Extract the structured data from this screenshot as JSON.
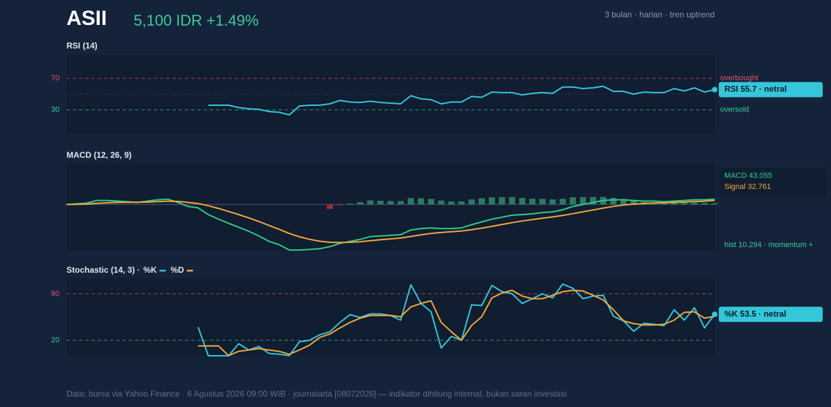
{
  "header": {
    "ticker": "ASII",
    "price": "5,100 IDR +1.49%",
    "meta": "3 bulan · harian · tren uptrend"
  },
  "chart_data": [
    {
      "type": "line",
      "title": "RSI (14)",
      "ylim": [
        0,
        100
      ],
      "yticks": [
        30,
        70
      ],
      "tick_colors": [
        "#3cc99a",
        "#e0546a"
      ],
      "tick_notes": [
        "oversold",
        "overbought"
      ],
      "midline": 50,
      "badge": "RSI 55.7 · netral",
      "badge_color": "#35c6da",
      "series": [
        {
          "color": "#35c6da",
          "values": [
            null,
            null,
            null,
            null,
            null,
            null,
            null,
            null,
            null,
            null,
            null,
            null,
            null,
            null,
            36,
            36,
            36,
            33,
            31.5,
            30.7,
            28,
            27,
            23.7,
            35,
            36,
            36,
            37.7,
            42,
            40,
            39.5,
            41,
            39.5,
            38.6,
            37.7,
            48,
            44,
            43,
            37.7,
            40,
            40,
            47,
            46,
            52.6,
            52,
            52,
            49,
            51,
            52,
            51,
            59,
            59,
            57,
            58,
            60,
            53.5,
            53.5,
            50,
            52.6,
            52,
            52,
            57,
            54,
            58,
            52.6,
            55.7
          ]
        }
      ]
    },
    {
      "type": "combo",
      "title": "MACD (12, 26, 9)",
      "ylim": [
        -370,
        330
      ],
      "series": [
        {
          "type": "bar",
          "label": "hist 10.294 · momentum +",
          "color": "#2c7a63",
          "negative_color": "#9b2c3f",
          "label_color": "#3cc99a",
          "values": [
            null,
            null,
            null,
            null,
            null,
            null,
            null,
            null,
            null,
            null,
            null,
            null,
            null,
            null,
            null,
            null,
            null,
            null,
            null,
            null,
            null,
            null,
            null,
            null,
            null,
            null,
            -35.4,
            -6.7,
            7.4,
            18.7,
            32.6,
            30.1,
            28,
            27.2,
            51.4,
            49.9,
            44.7,
            31,
            24.8,
            24.6,
            40.5,
            50,
            57.6,
            58.9,
            59.9,
            51.9,
            46.3,
            45,
            40.8,
            45.4,
            57.9,
            59.1,
            60.1,
            60.9,
            53.5,
            42.8,
            29.4,
            19.5,
            15.6,
            8.5,
            10.8,
            12.6,
            14.9,
            11.9,
            10.294
          ]
        },
        {
          "type": "line",
          "label": "MACD 43.055",
          "color": "#2ecc8a",
          "values": [
            0,
            5,
            11,
            32,
            32,
            27,
            22,
            16,
            27,
            38,
            43,
            16,
            -16,
            -27,
            -81,
            -118,
            -151,
            -183,
            -215,
            -253,
            -296,
            -323,
            -366,
            -366,
            -361,
            -355,
            -339,
            -312,
            -296,
            -280,
            -258,
            -253,
            -248,
            -242,
            -205,
            -194,
            -188,
            -194,
            -194,
            -188,
            -162,
            -140,
            -118,
            -102,
            -86,
            -81,
            -75,
            -65,
            -59,
            -43,
            -16,
            0,
            16,
            32,
            38,
            38,
            32,
            27,
            27,
            22,
            27,
            32,
            38,
            38,
            43.055
          ]
        },
        {
          "type": "line",
          "label": "Signal 32.761",
          "color": "#f0a93a",
          "values": [
            0,
            1,
            3,
            8.8,
            13.4,
            16.1,
            17.3,
            17,
            19,
            22.8,
            26.8,
            24.6,
            16.5,
            7.8,
            -10,
            -31.6,
            -55.5,
            -81,
            -107.8,
            -136.8,
            -168.6,
            -199.5,
            -232.8,
            -259.4,
            -279.7,
            -294.8,
            -303.6,
            -305.3,
            -303.4,
            -298.7,
            -290.6,
            -283.1,
            -276,
            -269.2,
            -256.4,
            -243.9,
            -232.7,
            -225,
            -218.8,
            -212.6,
            -202.5,
            -190,
            -175.6,
            -160.9,
            -145.9,
            -132.9,
            -121.3,
            -110,
            -99.8,
            -88.4,
            -73.9,
            -59.1,
            -44.1,
            -28.9,
            -15.5,
            -4.8,
            2.6,
            7.5,
            11.4,
            13.5,
            16.2,
            19.4,
            23.1,
            26.1,
            32.761
          ]
        }
      ]
    },
    {
      "type": "line",
      "title": "Stochastic (14, 3) ·",
      "ylim": [
        0,
        100
      ],
      "yticks": [
        20,
        80
      ],
      "tick_colors": [
        "#3cc99a",
        "#e0546a"
      ],
      "badge": "%K 53.5 · netral",
      "badge_color": "#35c6da",
      "legend": true,
      "series": [
        {
          "name": "%K",
          "color": "#35c6da",
          "values": [
            null,
            null,
            null,
            null,
            null,
            null,
            null,
            null,
            null,
            null,
            null,
            null,
            null,
            37,
            0,
            0,
            0,
            15.5,
            7.5,
            12,
            3,
            2,
            0.3,
            18,
            20,
            27,
            31,
            43,
            53,
            49.5,
            54,
            54,
            52,
            46,
            91.6,
            67.5,
            56.7,
            10,
            25,
            20,
            65.7,
            64.8,
            90.7,
            82.7,
            80,
            67.5,
            73.7,
            80,
            74.6,
            92.5,
            87,
            73.7,
            77,
            78,
            51,
            45,
            31.6,
            42,
            40.6,
            38.8,
            59.4,
            46,
            62,
            36,
            53.5
          ]
        },
        {
          "name": "%D",
          "color": "#f0a93a",
          "values": [
            null,
            null,
            null,
            null,
            null,
            null,
            null,
            null,
            null,
            null,
            null,
            null,
            null,
            12.8,
            12.8,
            12.8,
            0.3,
            5.7,
            7.5,
            9.3,
            7.5,
            5.7,
            2,
            7.5,
            13.7,
            23.6,
            28,
            36,
            43,
            48.6,
            52,
            52,
            52,
            50.4,
            63,
            67.5,
            71,
            43,
            31,
            20,
            39,
            50.4,
            74.6,
            81,
            84.5,
            77,
            73.7,
            73.7,
            78,
            82.7,
            84.5,
            83.6,
            78,
            72,
            59.4,
            45,
            41.5,
            39.7,
            39.7,
            40.6,
            46,
            56,
            56.7,
            48.6,
            51
          ]
        }
      ]
    }
  ],
  "footer": "Data: bursa via Yahoo Finance · 6 Agustus 2026 09:00 WIB · journalarta [08072026] — indikator dihitung internal, bukan saran investasi"
}
